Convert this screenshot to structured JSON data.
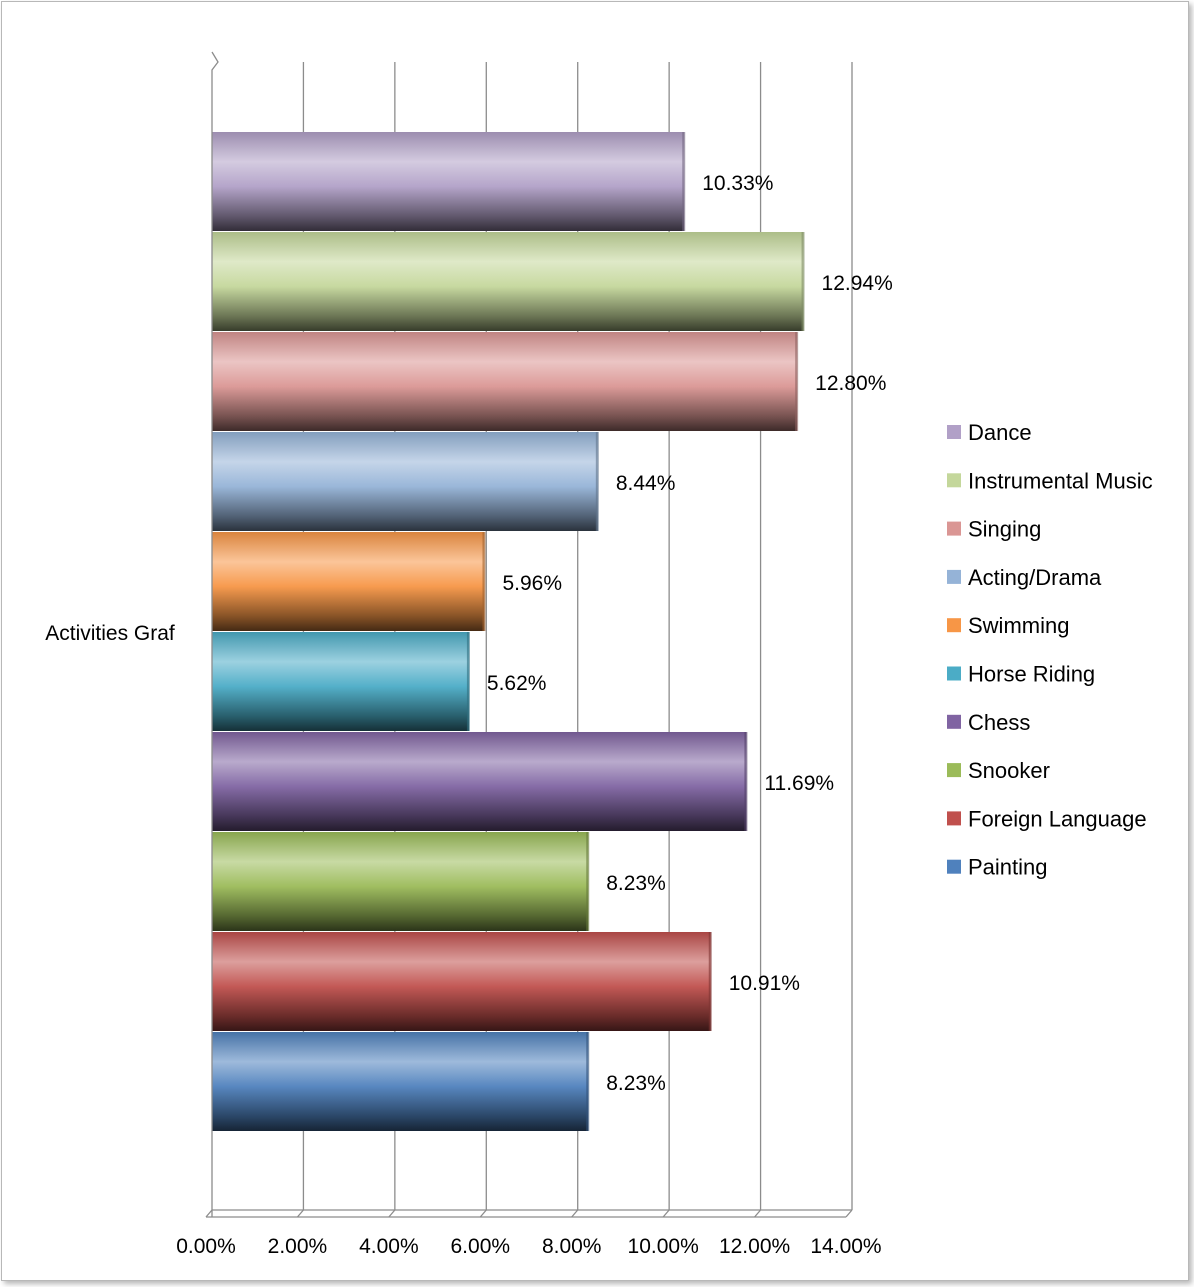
{
  "chart_data": {
    "type": "bar",
    "orientation": "horizontal",
    "category_label": "Activities Graf",
    "series": [
      {
        "name": "Painting",
        "value": 8.23,
        "label": "8.23%",
        "color": "#4f81bd"
      },
      {
        "name": "Foreign Language",
        "value": 10.91,
        "label": "10.91%",
        "color": "#c0504d"
      },
      {
        "name": "Snooker",
        "value": 8.23,
        "label": "8.23%",
        "color": "#9bbb59"
      },
      {
        "name": "Chess",
        "value": 11.69,
        "label": "11.69%",
        "color": "#8064a2"
      },
      {
        "name": "Horse Riding",
        "value": 5.62,
        "label": "5.62%",
        "color": "#4bacc6"
      },
      {
        "name": "Swimming",
        "value": 5.96,
        "label": "5.96%",
        "color": "#f79646"
      },
      {
        "name": "Acting/Drama",
        "value": 8.44,
        "label": "8.44%",
        "color": "#95b3d7"
      },
      {
        "name": "Singing",
        "value": 12.8,
        "label": "12.80%",
        "color": "#da9694"
      },
      {
        "name": "Instrumental Music",
        "value": 12.94,
        "label": "12.94%",
        "color": "#c4d79b"
      },
      {
        "name": "Dance",
        "value": 10.33,
        "label": "10.33%",
        "color": "#b1a0c7"
      }
    ],
    "xlim": [
      0,
      14
    ],
    "xticks": [
      "0.00%",
      "2.00%",
      "4.00%",
      "6.00%",
      "8.00%",
      "10.00%",
      "12.00%",
      "14.00%"
    ],
    "grid": true,
    "legend_position": "right"
  }
}
